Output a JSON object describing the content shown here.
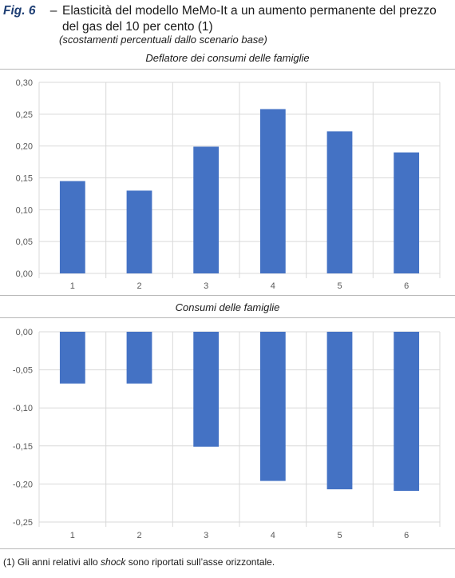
{
  "figure": {
    "label": "Fig. 6",
    "dash": "–",
    "title": "Elasticità del modello MeMo-It a un aumento permanente del prezzo del gas del 10 per cento (1)",
    "subtitle": "(scostamenti percentuali dallo scenario base)",
    "footnote_prefix": "(1) Gli anni relativi allo ",
    "footnote_italic": "shock",
    "footnote_suffix": " sono riportati sull’asse orizzontale."
  },
  "colors": {
    "bar": "#4472c4",
    "grid": "#d9d9d9",
    "axis_text": "#595959"
  },
  "chart_data": [
    {
      "type": "bar",
      "title": "Deflatore dei consumi delle famiglie",
      "categories": [
        "1",
        "2",
        "3",
        "4",
        "5",
        "6"
      ],
      "values": [
        0.145,
        0.13,
        0.199,
        0.258,
        0.223,
        0.19
      ],
      "ylim": [
        0,
        0.3
      ],
      "yticks": [
        0.3,
        0.25,
        0.2,
        0.15,
        0.1,
        0.05,
        0.0
      ],
      "ytick_labels": [
        "0,30",
        "0,25",
        "0,20",
        "0,15",
        "0,10",
        "0,05",
        "0,00"
      ],
      "grid": true
    },
    {
      "type": "bar",
      "title": "Consumi delle famiglie",
      "categories": [
        "1",
        "2",
        "3",
        "4",
        "5",
        "6"
      ],
      "values": [
        -0.068,
        -0.068,
        -0.151,
        -0.196,
        -0.207,
        -0.209
      ],
      "ylim": [
        -0.25,
        0
      ],
      "yticks": [
        0.0,
        -0.05,
        -0.1,
        -0.15,
        -0.2,
        -0.25
      ],
      "ytick_labels": [
        "0,00",
        "-0,05",
        "-0,10",
        "-0,15",
        "-0,20",
        "-0,25"
      ],
      "grid": true
    }
  ]
}
